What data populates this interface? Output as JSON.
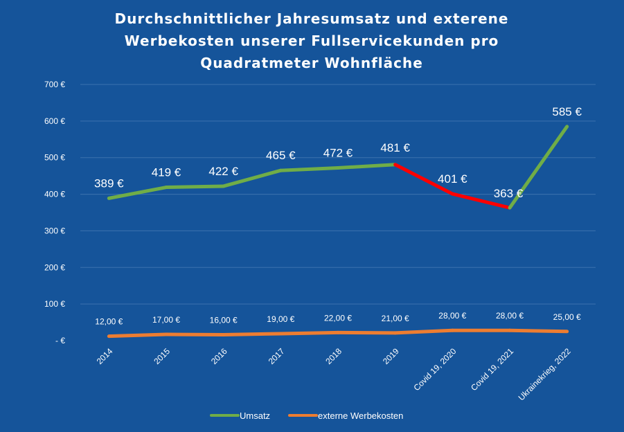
{
  "chart_data": {
    "type": "line",
    "title_lines": [
      "Durchschnittlicher Jahresumsatz und exterene",
      "Werbekosten unserer Fullservicekunden pro",
      "Quadratmeter Wohnfläche"
    ],
    "categories": [
      "2014",
      "2015",
      "2016",
      "2017",
      "2018",
      "2019",
      "Covid 19, 2020",
      "Covid 19, 2021",
      "Ukrainekrieg, 2022"
    ],
    "ylim": [
      0,
      700
    ],
    "ytick_labels": [
      "-  €",
      "100 €",
      "200 €",
      "300 €",
      "400 €",
      "500 €",
      "600 €",
      "700 €"
    ],
    "grid": true,
    "legend_position": "bottom",
    "series": [
      {
        "name": "Umsatz",
        "values": [
          389,
          419,
          422,
          465,
          472,
          481,
          401,
          363,
          585
        ],
        "labels": [
          "389 €",
          "419 €",
          "422 €",
          "465 €",
          "472 €",
          "481 €",
          "401 €",
          "363 €",
          "585 €"
        ],
        "color": "#70ad47",
        "highlight_color": "#ff0000",
        "highlight_segments": [
          5,
          6
        ]
      },
      {
        "name": "externe Werbekosten",
        "values": [
          12,
          17,
          16,
          19,
          22,
          21,
          28,
          28,
          25
        ],
        "labels": [
          "12,00 €",
          "17,00 €",
          "16,00 €",
          "19,00 €",
          "22,00 €",
          "21,00 €",
          "28,00 €",
          "28,00 €",
          "25,00 €"
        ],
        "color": "#ed7d31"
      }
    ]
  }
}
